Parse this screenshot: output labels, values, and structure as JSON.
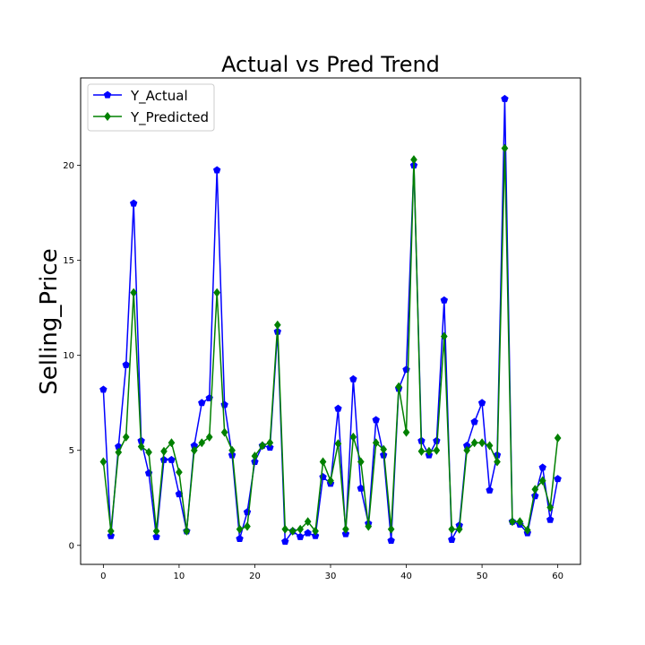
{
  "chart_data": {
    "type": "line",
    "title": "Actual vs Pred Trend",
    "xlabel": "",
    "ylabel": "Selling_Price",
    "xlim": [
      -3,
      63
    ],
    "ylim": [
      -1,
      24.6
    ],
    "xticks": [
      0,
      10,
      20,
      30,
      40,
      50,
      60
    ],
    "yticks": [
      0,
      5,
      10,
      15,
      20
    ],
    "grid": false,
    "legend_position": "top-left",
    "x": [
      0,
      1,
      2,
      3,
      4,
      5,
      6,
      7,
      8,
      9,
      10,
      11,
      12,
      13,
      14,
      15,
      16,
      17,
      18,
      19,
      20,
      21,
      22,
      23,
      24,
      25,
      26,
      27,
      28,
      29,
      30,
      31,
      32,
      33,
      34,
      35,
      36,
      37,
      38,
      39,
      40,
      41,
      42,
      43,
      44,
      45,
      46,
      47,
      48,
      49,
      50,
      51,
      52,
      53,
      54,
      55,
      56,
      57,
      58,
      59,
      60
    ],
    "series": [
      {
        "name": "Y_Actual",
        "color": "#0000ff",
        "marker": "pentagon",
        "values": [
          8.2,
          0.5,
          5.2,
          9.5,
          18.0,
          5.5,
          3.8,
          0.45,
          4.5,
          4.5,
          2.7,
          0.75,
          5.25,
          7.5,
          7.75,
          19.75,
          7.4,
          4.75,
          0.35,
          1.75,
          4.4,
          5.25,
          5.15,
          11.25,
          0.2,
          0.75,
          0.45,
          0.65,
          0.5,
          3.6,
          3.25,
          7.2,
          0.6,
          8.75,
          3.0,
          1.15,
          6.6,
          4.75,
          0.25,
          8.25,
          9.25,
          20.0,
          5.5,
          4.75,
          5.5,
          12.9,
          0.3,
          1.05,
          5.25,
          6.5,
          7.5,
          2.9,
          4.75,
          23.5,
          1.25,
          1.1,
          0.65,
          2.6,
          4.1,
          1.35,
          3.5
        ]
      },
      {
        "name": "Y_Predicted",
        "color": "#008000",
        "marker": "diamond",
        "values": [
          4.4,
          0.75,
          4.9,
          5.7,
          13.3,
          5.2,
          4.9,
          0.75,
          4.95,
          5.4,
          3.85,
          0.75,
          5.0,
          5.4,
          5.7,
          13.3,
          5.95,
          5.0,
          0.85,
          1.0,
          4.7,
          5.25,
          5.4,
          11.6,
          0.85,
          0.75,
          0.85,
          1.25,
          0.75,
          4.4,
          3.4,
          5.35,
          0.85,
          5.7,
          4.4,
          1.0,
          5.4,
          5.05,
          0.85,
          8.35,
          5.95,
          20.3,
          4.95,
          4.95,
          5.0,
          11.0,
          0.85,
          0.85,
          5.0,
          5.4,
          5.4,
          5.25,
          4.4,
          20.9,
          1.25,
          1.25,
          0.8,
          2.95,
          3.4,
          2.0,
          5.65
        ]
      }
    ]
  }
}
